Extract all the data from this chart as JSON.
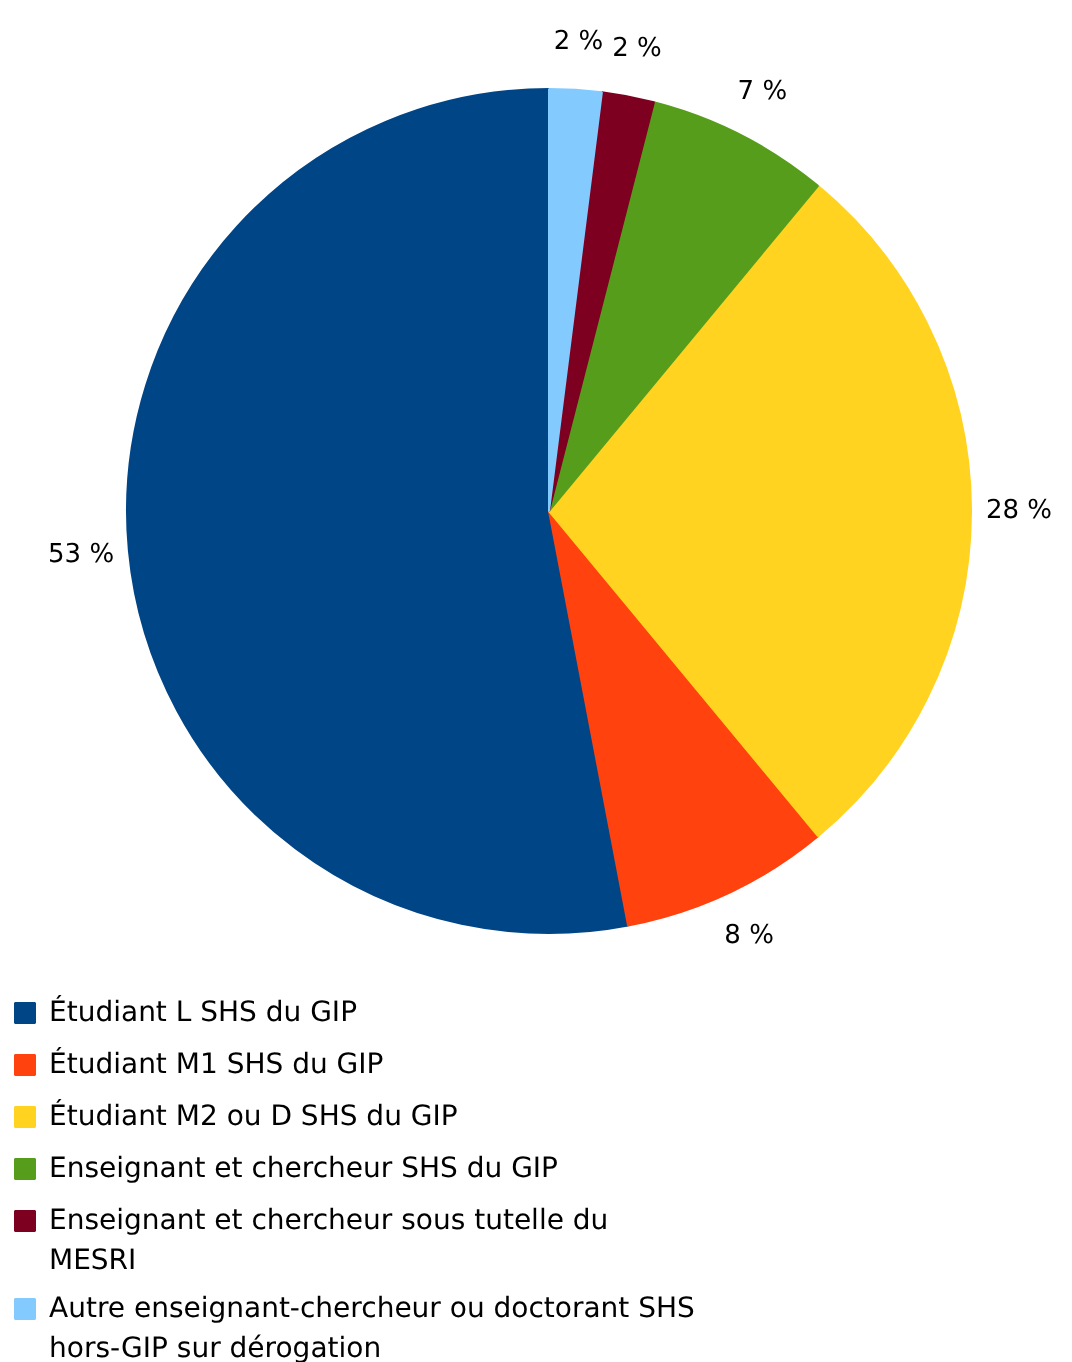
{
  "chart_data": {
    "type": "pie",
    "categories": [
      "Étudiant L SHS du GIP",
      "Étudiant M1 SHS du GIP",
      "Étudiant M2 ou D SHS du GIP",
      "Enseignant et chercheur SHS du GIP",
      "Enseignant et chercheur sous tutelle du MESRI",
      "Autre enseignant-chercheur ou doctorant SHS hors-GIP sur dérogation"
    ],
    "values": [
      53,
      8,
      28,
      7,
      2,
      2
    ],
    "colors": [
      "#004586",
      "#ff420e",
      "#ffd320",
      "#579d1c",
      "#7e0021",
      "#83caff"
    ],
    "value_labels": [
      "53 %",
      "8 %",
      "28 %",
      "7 %",
      "2 %",
      "2 %"
    ],
    "legend": "bottom left"
  }
}
